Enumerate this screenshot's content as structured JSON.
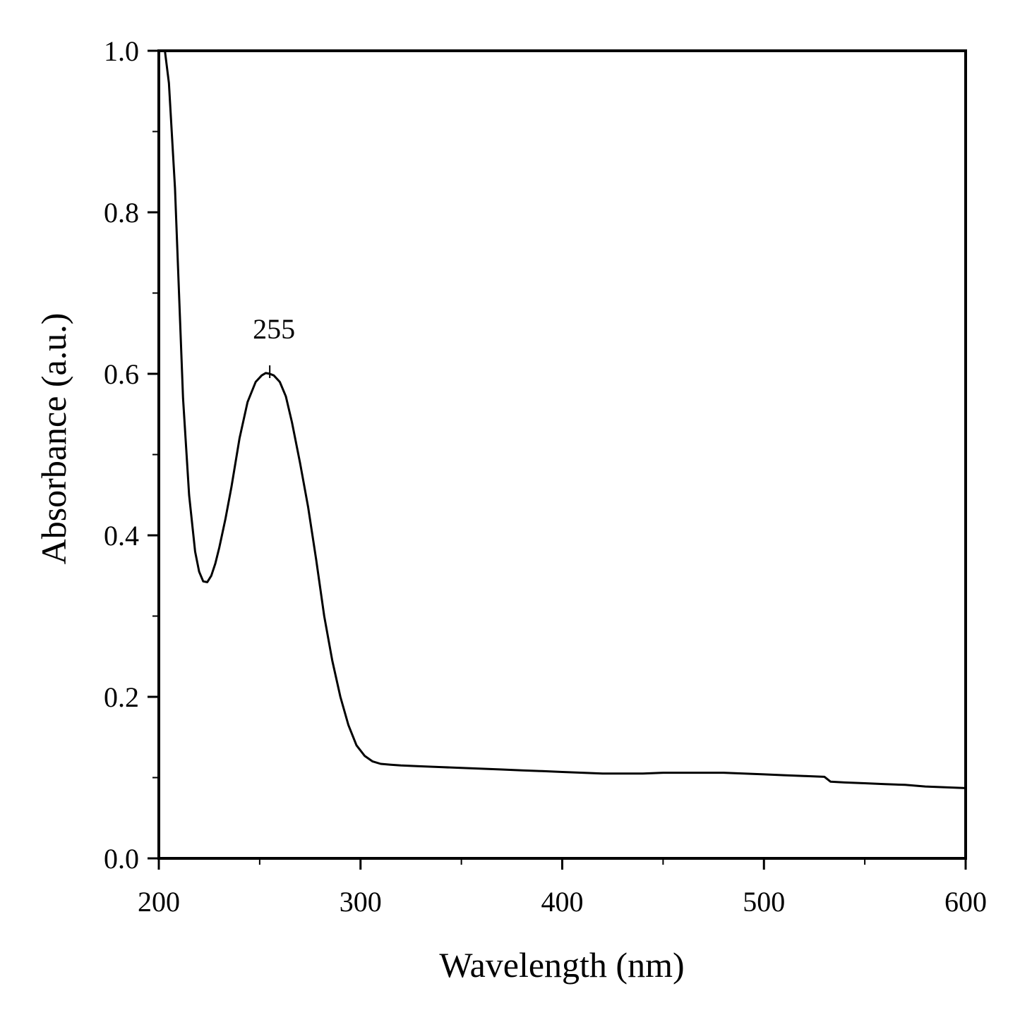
{
  "chart_data": {
    "type": "line",
    "title": "",
    "xlabel": "Wavelength (nm)",
    "ylabel": "Absorbance (a.u.)",
    "xlim": [
      200,
      600
    ],
    "ylim": [
      0.0,
      1.0
    ],
    "x_ticks": [
      200,
      300,
      400,
      500,
      600
    ],
    "x_tick_labels": [
      "200",
      "300",
      "400",
      "500",
      "600"
    ],
    "y_ticks": [
      0.0,
      0.2,
      0.4,
      0.6,
      0.8,
      1.0
    ],
    "y_tick_labels": [
      "0.0",
      "0.2",
      "0.4",
      "0.6",
      "0.8",
      "1.0"
    ],
    "grid": false,
    "legend": "none",
    "line_color": "#000000",
    "series": [
      {
        "x": [
          203,
          205,
          208,
          210,
          212,
          215,
          218,
          220,
          222,
          224,
          226,
          228,
          230,
          233,
          236,
          240,
          244,
          248,
          251,
          253,
          255,
          257,
          260,
          263,
          266,
          270,
          274,
          278,
          282,
          286,
          290,
          294,
          298,
          302,
          306,
          310,
          315,
          320,
          330,
          340,
          350,
          360,
          370,
          380,
          390,
          400,
          410,
          420,
          430,
          440,
          450,
          460,
          470,
          480,
          490,
          500,
          510,
          520,
          530,
          533,
          540,
          550,
          560,
          570,
          580,
          590,
          600
        ],
        "y": [
          1.0,
          0.96,
          0.83,
          0.7,
          0.57,
          0.45,
          0.38,
          0.355,
          0.343,
          0.342,
          0.35,
          0.365,
          0.385,
          0.42,
          0.46,
          0.52,
          0.565,
          0.59,
          0.598,
          0.601,
          0.6,
          0.598,
          0.59,
          0.572,
          0.54,
          0.49,
          0.435,
          0.37,
          0.3,
          0.245,
          0.2,
          0.165,
          0.14,
          0.127,
          0.12,
          0.117,
          0.116,
          0.115,
          0.114,
          0.113,
          0.112,
          0.111,
          0.11,
          0.109,
          0.108,
          0.107,
          0.106,
          0.105,
          0.105,
          0.105,
          0.106,
          0.106,
          0.106,
          0.106,
          0.105,
          0.104,
          0.103,
          0.102,
          0.101,
          0.095,
          0.094,
          0.093,
          0.092,
          0.091,
          0.089,
          0.088,
          0.087
        ]
      }
    ],
    "annotations": [
      {
        "text": "255",
        "x": 255,
        "y": 0.6
      }
    ]
  }
}
